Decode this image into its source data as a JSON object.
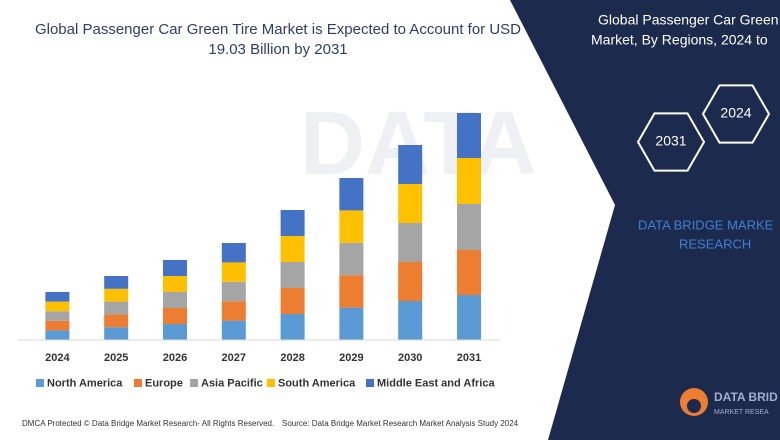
{
  "chart_data": {
    "type": "stacked_bar",
    "title": [
      "Global Passenger Car Green Tire Market is Expected to Account for USD",
      "19.03 Billion by 2031"
    ],
    "categories": [
      "2024",
      "2025",
      "2026",
      "2027",
      "2028",
      "2029",
      "2030",
      "2031"
    ],
    "series": [
      {
        "name": "North America",
        "color": "#5b9bd5",
        "values": [
          9.6,
          12.8,
          16,
          19.4,
          26,
          32.4,
          39,
          45
        ]
      },
      {
        "name": "Europe",
        "color": "#ed7d31",
        "values": [
          9.6,
          12.8,
          16,
          19.4,
          26,
          32.4,
          39,
          45
        ]
      },
      {
        "name": "Asia Pacific",
        "color": "#a5a5a5",
        "values": [
          9.6,
          12.8,
          16,
          19.4,
          26,
          32.4,
          39,
          46
        ]
      },
      {
        "name": "South America",
        "color": "#ffc000",
        "values": [
          9.6,
          12.8,
          16,
          19.4,
          26,
          32.4,
          39,
          46
        ]
      },
      {
        "name": "Middle East and Africa",
        "color": "#4472c4",
        "values": [
          9.6,
          12.8,
          16,
          19.4,
          26,
          32.4,
          39,
          45
        ]
      }
    ],
    "ylim": [
      0,
      240
    ]
  },
  "panel": {
    "heading": [
      "Global Passenger Car Green",
      "Market, By Regions, 2024 to"
    ],
    "hexagons": [
      "2024",
      "2031"
    ],
    "brand": [
      "DATA BRIDGE MARKE",
      "RESEARCH"
    ]
  },
  "logo": [
    "DATA BRID",
    "MARKET RESEA"
  ],
  "footer": {
    "copyright": "DMCA Protected © Data Bridge Market Research- All Rights Reserved.",
    "source": "Source: Data Bridge Market Research Market Analysis Study 2024"
  }
}
